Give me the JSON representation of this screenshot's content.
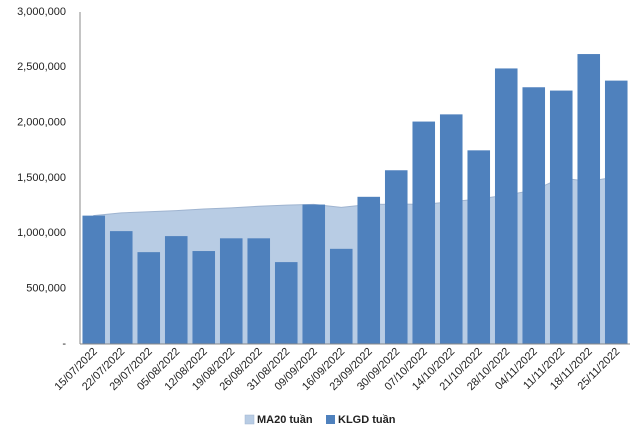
{
  "chart_data": {
    "type": "bar",
    "categories": [
      "15/07/2022",
      "22/07/2022",
      "29/07/2022",
      "05/08/2022",
      "12/08/2022",
      "19/08/2022",
      "26/08/2022",
      "31/08/2022",
      "09/09/2022",
      "16/09/2022",
      "23/09/2022",
      "30/09/2022",
      "07/10/2022",
      "14/10/2022",
      "21/10/2022",
      "28/10/2022",
      "04/11/2022",
      "11/11/2022",
      "18/11/2022",
      "25/11/2022"
    ],
    "series": [
      {
        "name": "MA20 tuần",
        "kind": "area",
        "color": "#b8cce4",
        "values": [
          1160000,
          1185000,
          1195000,
          1205000,
          1220000,
          1230000,
          1245000,
          1255000,
          1262000,
          1235000,
          1260000,
          1265000,
          1262000,
          1285000,
          1310000,
          1345000,
          1390000,
          1500000,
          1470000,
          1510000
        ]
      },
      {
        "name": "KLGD tuần",
        "kind": "bar",
        "color": "#4f81bd",
        "values": [
          1160000,
          1020000,
          830000,
          975000,
          840000,
          955000,
          955000,
          740000,
          1260000,
          860000,
          1330000,
          1570000,
          2010000,
          2075000,
          1750000,
          2490000,
          2320000,
          2290000,
          2620000,
          2380000
        ]
      }
    ],
    "yticks": [
      {
        "value": 0,
        "label": "-"
      },
      {
        "value": 500000,
        "label": "500,000"
      },
      {
        "value": 1000000,
        "label": "1,000,000"
      },
      {
        "value": 1500000,
        "label": "1,500,000"
      },
      {
        "value": 2000000,
        "label": "2,000,000"
      },
      {
        "value": 2500000,
        "label": "2,500,000"
      },
      {
        "value": 3000000,
        "label": "3,000,000"
      }
    ],
    "ylim": [
      0,
      3000000
    ],
    "legend_position": "bottom",
    "grid": false
  }
}
